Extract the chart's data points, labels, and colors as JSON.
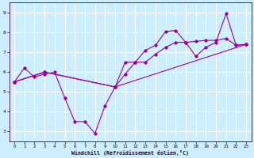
{
  "xlabel": "Windchill (Refroidissement éolien,°C)",
  "bg_color": "#cceeff",
  "line_color": "#990099",
  "grid_color": "#ffffff",
  "xlim": [
    -0.5,
    23.5
  ],
  "ylim": [
    2.5,
    9.5
  ],
  "xticks": [
    0,
    1,
    2,
    3,
    4,
    5,
    6,
    7,
    8,
    9,
    10,
    11,
    12,
    13,
    14,
    15,
    16,
    17,
    18,
    19,
    20,
    21,
    22,
    23
  ],
  "yticks": [
    3,
    4,
    5,
    6,
    7,
    8,
    9
  ],
  "line1_x": [
    0,
    1,
    2,
    3,
    4,
    5,
    6,
    7,
    8,
    9,
    10,
    11,
    12,
    13,
    14,
    15,
    16,
    17,
    18,
    19,
    20,
    21,
    22,
    23
  ],
  "line1_y": [
    5.5,
    6.2,
    5.75,
    5.9,
    6.0,
    4.7,
    3.5,
    3.5,
    2.9,
    4.3,
    5.25,
    5.9,
    6.5,
    7.1,
    7.35,
    8.05,
    8.1,
    7.5,
    6.8,
    7.25,
    7.5,
    8.95,
    7.35,
    7.4
  ],
  "line2_x": [
    0,
    3,
    10,
    11,
    12,
    13,
    14,
    15,
    16,
    17,
    18,
    19,
    20,
    21,
    22,
    23
  ],
  "line2_y": [
    5.5,
    6.0,
    5.25,
    6.5,
    6.5,
    6.5,
    6.9,
    7.25,
    7.5,
    7.5,
    7.55,
    7.6,
    7.6,
    7.7,
    7.35,
    7.4
  ],
  "line3_x": [
    0,
    3,
    10,
    23
  ],
  "line3_y": [
    5.5,
    6.0,
    5.25,
    7.4
  ]
}
